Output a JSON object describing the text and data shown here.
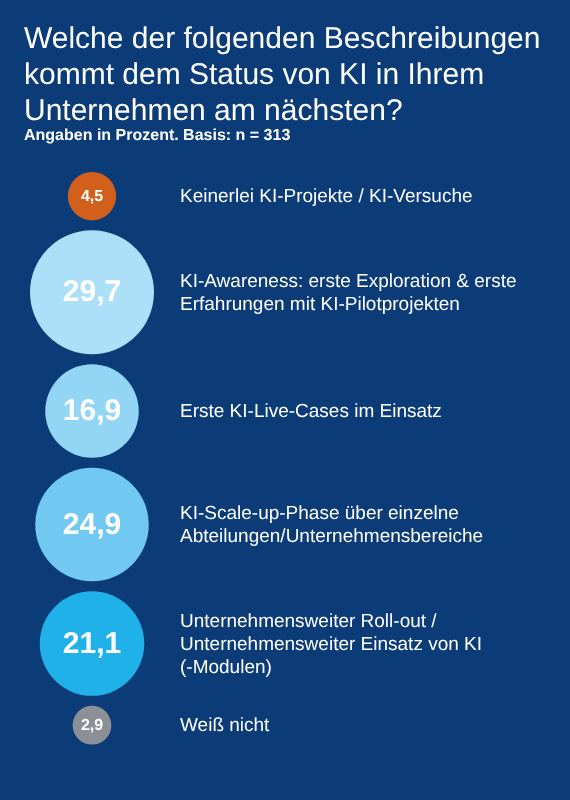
{
  "chart_data": {
    "type": "other",
    "title": "Welche der folgenden Beschreibungen kommt dem Status von KI in Ihrem Unternehmen am nächsten?",
    "subtitle": "Angaben in Prozent. Basis: n = 313",
    "categories": [
      "Keinerlei KI-Projekte / KI-Versuche",
      "KI-Awareness: erste Exploration & erste Erfahrungen mit KI-Pilotprojekten",
      "Erste KI-Live-Cases im Einsatz",
      "KI-Scale-up-Phase über einzelne Abteilungen/Unternehmensbereiche",
      "Unternehmensweiter Roll-out / Unternehmensweiter Einsatz von KI (-Modulen)",
      "Weiß nicht"
    ],
    "values": [
      4.5,
      29.7,
      16.9,
      24.9,
      21.1,
      2.9
    ],
    "value_labels": [
      "4,5",
      "29,7",
      "16,9",
      "24,9",
      "21,1",
      "2,9"
    ],
    "colors": [
      "#d2601c",
      "#ace0f8",
      "#93d5f5",
      "#71c8f0",
      "#1fb1e8",
      "#8c8f96"
    ]
  }
}
